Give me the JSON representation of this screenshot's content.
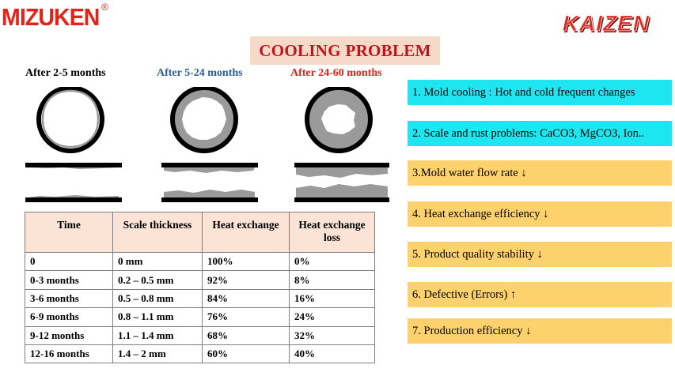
{
  "brand": {
    "name": "MIZUKEN",
    "registered": "®"
  },
  "logo": {
    "text": "KAIZEN"
  },
  "title": "COOLING PROBLEM",
  "stages": [
    {
      "label": "After 2-5 months"
    },
    {
      "label": "After 5-24 months"
    },
    {
      "label": "After 24-60 months"
    }
  ],
  "table": {
    "headers": [
      "Time",
      "Scale thickness",
      "Heat exchange",
      "Heat exchange loss"
    ],
    "rows": [
      [
        "0",
        "0 mm",
        "100%",
        "0%"
      ],
      [
        "0-3 months",
        "0.2 – 0.5 mm",
        "92%",
        "8%"
      ],
      [
        "3-6 months",
        "0.5 – 0.8 mm",
        "84%",
        "16%"
      ],
      [
        "6-9 months",
        "0.8 – 1.1 mm",
        "76%",
        "24%"
      ],
      [
        "9-12 months",
        "1.1 – 1.4 mm",
        "68%",
        "32%"
      ],
      [
        "12-16 months",
        "1.4 – 2 mm",
        "60%",
        "40%"
      ]
    ]
  },
  "problems": [
    {
      "text": "1. Mold  cooling : Hot and cold frequent changes",
      "style": "cyan"
    },
    {
      "text": "2. Scale and rust problems: CaCO3, MgCO3, Ion..",
      "style": "cyan"
    },
    {
      "text": "3.Mold  water flow rate  ↓",
      "style": "gold"
    },
    {
      "text": "4. Heat exchange efficiency  ↓",
      "style": "gold"
    },
    {
      "text": "5. Product quality stability ↓",
      "style": "gold"
    },
    {
      "text": "6. Defective (Errors) ↑",
      "style": "gold"
    },
    {
      "text": "7. Production efficiency ↓",
      "style": "gold"
    }
  ],
  "colors": {
    "brand_red": "#e2231a",
    "cyan": "#1ee6f0",
    "gold": "#fdd16b",
    "title_bg": "#f7d9c9",
    "scale_gray": "#9a9a9a"
  }
}
